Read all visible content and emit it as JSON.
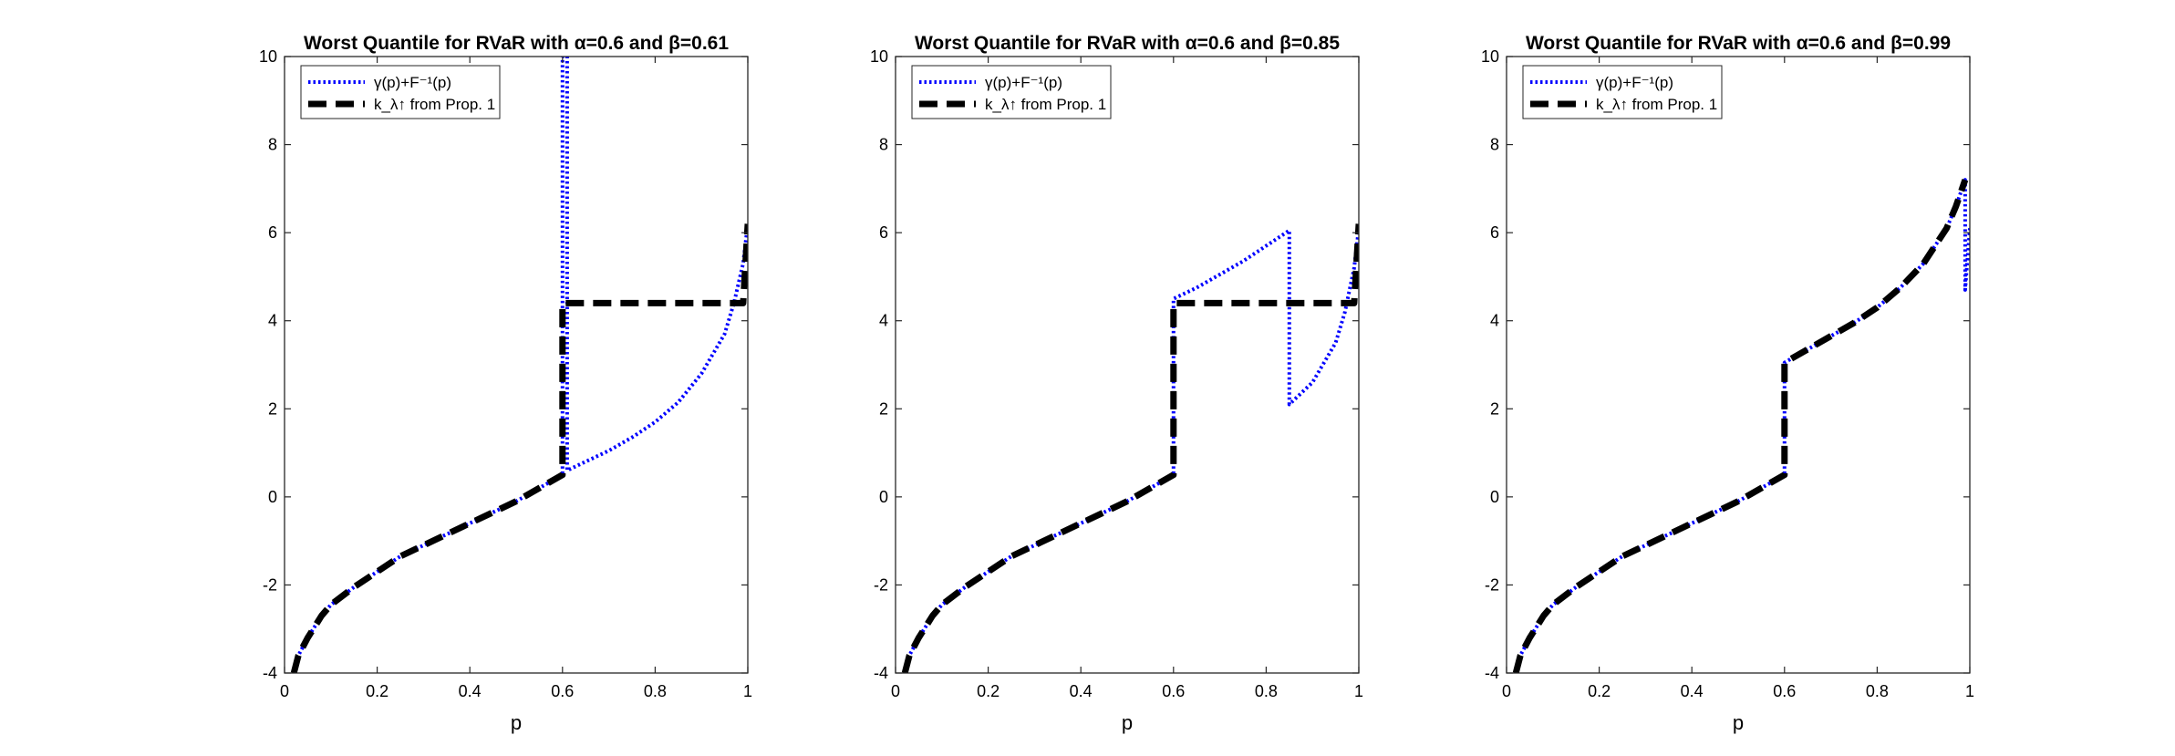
{
  "figure": {
    "background": "#ffffff"
  },
  "chart_data": [
    {
      "type": "line",
      "title": "Worst Quantile for RVaR with α=0.6 and β=0.61",
      "xlabel": "p",
      "ylabel": "",
      "xlim": [
        0,
        1
      ],
      "ylim": [
        -4,
        10
      ],
      "xticks": [
        0,
        0.2,
        0.4,
        0.6,
        0.8,
        1
      ],
      "xtick_labels": [
        "0",
        "0.2",
        "0.4",
        "0.6",
        "0.8",
        "1"
      ],
      "yticks": [
        -4,
        -2,
        0,
        2,
        4,
        6,
        8,
        10
      ],
      "ytick_labels": [
        "-4",
        "-2",
        "0",
        "2",
        "4",
        "6",
        "8",
        "10"
      ],
      "grid": false,
      "legend_position": "top-left",
      "series": [
        {
          "name": "γ(p)+F⁻¹(p)",
          "color": "#0000ff",
          "style": "dotted",
          "x": [
            0.02,
            0.03,
            0.05,
            0.08,
            0.1,
            0.15,
            0.2,
            0.25,
            0.3,
            0.35,
            0.4,
            0.45,
            0.5,
            0.55,
            0.6,
            0.6,
            0.61,
            0.61,
            0.65,
            0.7,
            0.75,
            0.8,
            0.85,
            0.9,
            0.95,
            0.97,
            0.99,
            1.0
          ],
          "y": [
            -4.0,
            -3.6,
            -3.2,
            -2.7,
            -2.45,
            -2.05,
            -1.7,
            -1.35,
            -1.1,
            -0.85,
            -0.6,
            -0.35,
            -0.1,
            0.2,
            0.5,
            10.0,
            10.0,
            0.6,
            0.8,
            1.05,
            1.35,
            1.7,
            2.15,
            2.8,
            3.7,
            4.4,
            5.3,
            6.2
          ]
        },
        {
          "name": "k_λ↑ from Prop. 1",
          "color": "#000000",
          "style": "dashed",
          "x": [
            0.02,
            0.03,
            0.05,
            0.08,
            0.1,
            0.15,
            0.2,
            0.25,
            0.3,
            0.35,
            0.4,
            0.45,
            0.5,
            0.55,
            0.6,
            0.6,
            0.99,
            1.0
          ],
          "y": [
            -4.0,
            -3.6,
            -3.2,
            -2.7,
            -2.45,
            -2.05,
            -1.7,
            -1.35,
            -1.1,
            -0.85,
            -0.6,
            -0.35,
            -0.1,
            0.2,
            0.5,
            4.4,
            4.4,
            6.2
          ]
        }
      ]
    },
    {
      "type": "line",
      "title": "Worst Quantile for RVaR with α=0.6 and β=0.85",
      "xlabel": "p",
      "ylabel": "",
      "xlim": [
        0,
        1
      ],
      "ylim": [
        -4,
        10
      ],
      "xticks": [
        0,
        0.2,
        0.4,
        0.6,
        0.8,
        1
      ],
      "xtick_labels": [
        "0",
        "0.2",
        "0.4",
        "0.6",
        "0.8",
        "1"
      ],
      "yticks": [
        -4,
        -2,
        0,
        2,
        4,
        6,
        8,
        10
      ],
      "ytick_labels": [
        "-4",
        "-2",
        "0",
        "2",
        "4",
        "6",
        "8",
        "10"
      ],
      "grid": false,
      "legend_position": "top-left",
      "series": [
        {
          "name": "γ(p)+F⁻¹(p)",
          "color": "#0000ff",
          "style": "dotted",
          "x": [
            0.02,
            0.03,
            0.05,
            0.08,
            0.1,
            0.15,
            0.2,
            0.25,
            0.3,
            0.35,
            0.4,
            0.45,
            0.5,
            0.55,
            0.6,
            0.6,
            0.65,
            0.7,
            0.75,
            0.8,
            0.85,
            0.85,
            0.9,
            0.95,
            0.97,
            0.99,
            1.0
          ],
          "y": [
            -4.0,
            -3.6,
            -3.2,
            -2.7,
            -2.45,
            -2.05,
            -1.7,
            -1.35,
            -1.1,
            -0.85,
            -0.6,
            -0.35,
            -0.1,
            0.2,
            0.5,
            4.5,
            4.75,
            5.05,
            5.35,
            5.7,
            6.05,
            2.1,
            2.6,
            3.5,
            4.2,
            5.2,
            6.1
          ]
        },
        {
          "name": "k_λ↑ from Prop. 1",
          "color": "#000000",
          "style": "dashed",
          "x": [
            0.02,
            0.03,
            0.05,
            0.08,
            0.1,
            0.15,
            0.2,
            0.25,
            0.3,
            0.35,
            0.4,
            0.45,
            0.5,
            0.55,
            0.6,
            0.6,
            0.99,
            1.0
          ],
          "y": [
            -4.0,
            -3.6,
            -3.2,
            -2.7,
            -2.45,
            -2.05,
            -1.7,
            -1.35,
            -1.1,
            -0.85,
            -0.6,
            -0.35,
            -0.1,
            0.2,
            0.5,
            4.4,
            4.4,
            6.2
          ]
        }
      ]
    },
    {
      "type": "line",
      "title": "Worst Quantile for RVaR with α=0.6 and β=0.99",
      "xlabel": "p",
      "ylabel": "",
      "xlim": [
        0,
        1
      ],
      "ylim": [
        -4,
        10
      ],
      "xticks": [
        0,
        0.2,
        0.4,
        0.6,
        0.8,
        1
      ],
      "xtick_labels": [
        "0",
        "0.2",
        "0.4",
        "0.6",
        "0.8",
        "1"
      ],
      "yticks": [
        -4,
        -2,
        0,
        2,
        4,
        6,
        8,
        10
      ],
      "ytick_labels": [
        "-4",
        "-2",
        "0",
        "2",
        "4",
        "6",
        "8",
        "10"
      ],
      "grid": false,
      "legend_position": "top-left",
      "series": [
        {
          "name": "γ(p)+F⁻¹(p)",
          "color": "#0000ff",
          "style": "dotted",
          "x": [
            0.02,
            0.03,
            0.05,
            0.08,
            0.1,
            0.15,
            0.2,
            0.25,
            0.3,
            0.35,
            0.4,
            0.45,
            0.5,
            0.55,
            0.6,
            0.6,
            0.65,
            0.7,
            0.75,
            0.8,
            0.85,
            0.9,
            0.95,
            0.97,
            0.99,
            0.99,
            1.0
          ],
          "y": [
            -4.0,
            -3.6,
            -3.2,
            -2.7,
            -2.45,
            -2.05,
            -1.7,
            -1.35,
            -1.1,
            -0.85,
            -0.6,
            -0.35,
            -0.1,
            0.2,
            0.5,
            3.05,
            3.35,
            3.65,
            3.95,
            4.3,
            4.75,
            5.3,
            6.1,
            6.6,
            7.2,
            4.7,
            6.1
          ]
        },
        {
          "name": "k_λ↑ from Prop. 1",
          "color": "#000000",
          "style": "dashed",
          "x": [
            0.02,
            0.03,
            0.05,
            0.08,
            0.1,
            0.15,
            0.2,
            0.25,
            0.3,
            0.35,
            0.4,
            0.45,
            0.5,
            0.55,
            0.6,
            0.6,
            0.65,
            0.7,
            0.75,
            0.8,
            0.85,
            0.9,
            0.95,
            0.97,
            0.99
          ],
          "y": [
            -4.0,
            -3.6,
            -3.2,
            -2.7,
            -2.45,
            -2.05,
            -1.7,
            -1.35,
            -1.1,
            -0.85,
            -0.6,
            -0.35,
            -0.1,
            0.2,
            0.5,
            3.05,
            3.35,
            3.65,
            3.95,
            4.3,
            4.75,
            5.3,
            6.1,
            6.6,
            7.2
          ]
        }
      ]
    }
  ]
}
